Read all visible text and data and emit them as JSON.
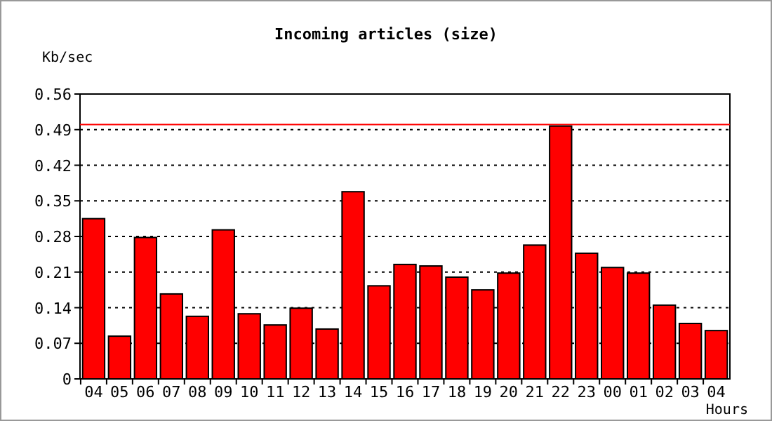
{
  "chart_data": {
    "type": "bar",
    "title": "Incoming articles (size)",
    "ylabel": "Kb/sec",
    "xlabel": "Hours",
    "categories": [
      "04",
      "05",
      "06",
      "07",
      "08",
      "09",
      "10",
      "11",
      "12",
      "13",
      "14",
      "15",
      "16",
      "17",
      "18",
      "19",
      "20",
      "21",
      "22",
      "23",
      "00",
      "01",
      "02",
      "03",
      "04"
    ],
    "values": [
      0.315,
      0.084,
      0.278,
      0.167,
      0.123,
      0.293,
      0.128,
      0.106,
      0.139,
      0.098,
      0.368,
      0.183,
      0.225,
      0.222,
      0.2,
      0.175,
      0.208,
      0.263,
      0.497,
      0.247,
      0.219,
      0.208,
      0.145,
      0.109,
      0.095
    ],
    "color": "#ff0000",
    "ylim": [
      0,
      0.56
    ],
    "yticks": [
      0,
      0.07,
      0.14,
      0.21,
      0.28,
      0.35,
      0.42,
      0.49,
      0.56
    ],
    "grid": "y",
    "ref_lines": [
      {
        "axis": "y",
        "value": 0.5,
        "color": "#ff0000"
      }
    ]
  }
}
